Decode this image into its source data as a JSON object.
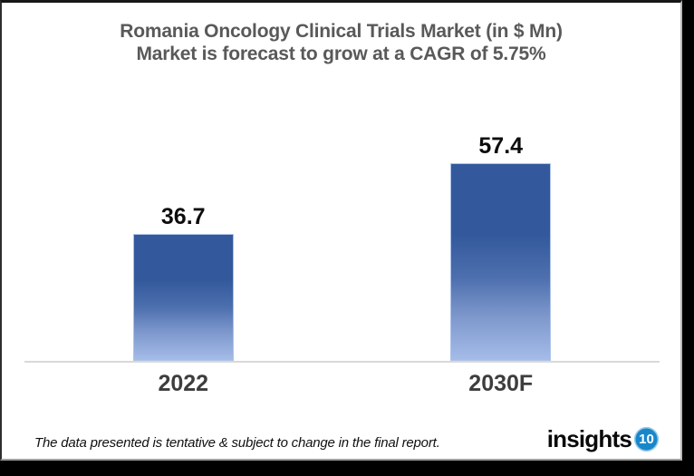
{
  "chart_data": {
    "type": "bar",
    "title": "Romania Oncology Clinical Trials Market (in $ Mn)",
    "subtitle": "Market is forecast to grow at a CAGR of 5.75%",
    "categories": [
      "2022",
      "2030F"
    ],
    "values": [
      36.7,
      57.4
    ],
    "data_labels": [
      "36.7",
      "57.4"
    ],
    "xlabel": "",
    "ylabel": "",
    "ylim": [
      0,
      62
    ],
    "grid": false,
    "legend": false,
    "title_color": "#595959",
    "axis_line_color": "#D9D9D9",
    "bar_border_color": "#AEC3E8",
    "bar_gradient": {
      "stops": [
        "#33599C",
        "#33599C",
        "#4D6FAE",
        "#7E98CD",
        "#A5BCE8"
      ],
      "positions": [
        0,
        36,
        58,
        78,
        100
      ]
    },
    "value_label_color": "#0D0D0D",
    "category_label_color": "#3D3D3D"
  },
  "footer": {
    "note": "The data presented is tentative & subject to change in the final report.",
    "logo_text": "insights",
    "logo_badge": "10",
    "logo_badge_color": "#1787CA"
  }
}
